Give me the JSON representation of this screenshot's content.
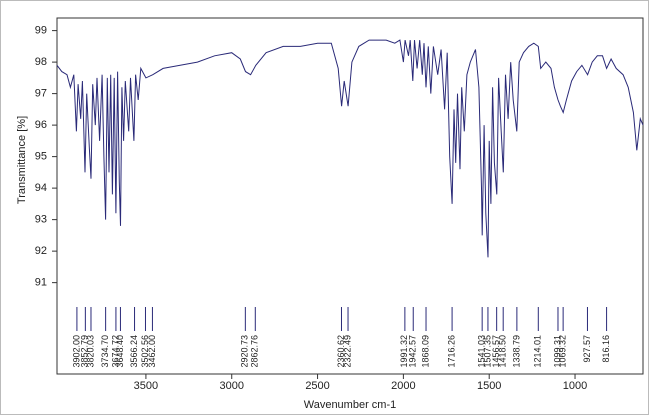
{
  "chart_data": {
    "type": "line",
    "xlabel": "Wavenumber cm-1",
    "ylabel": "Transmittance [%]",
    "xlim": [
      4018,
      604
    ],
    "ylim": [
      88.1,
      99.4
    ],
    "xticks": [
      3500,
      3000,
      2500,
      2000,
      1500,
      1000
    ],
    "yticks": [
      91,
      92,
      93,
      94,
      95,
      96,
      97,
      98,
      99
    ],
    "series": [
      {
        "color": "#2a2a78",
        "x": [
          4018,
          3990,
          3960,
          3940,
          3920,
          3905,
          3895,
          3880,
          3870,
          3855,
          3845,
          3830,
          3820,
          3810,
          3795,
          3785,
          3770,
          3755,
          3745,
          3735,
          3725,
          3715,
          3705,
          3695,
          3685,
          3675,
          3665,
          3655,
          3648,
          3640,
          3630,
          3620,
          3600,
          3590,
          3570,
          3560,
          3545,
          3530,
          3500,
          3460,
          3400,
          3300,
          3200,
          3100,
          3000,
          2950,
          2920,
          2890,
          2860,
          2800,
          2700,
          2600,
          2500,
          2420,
          2380,
          2360,
          2345,
          2322,
          2300,
          2260,
          2200,
          2100,
          2050,
          2020,
          2000,
          1990,
          1970,
          1960,
          1945,
          1935,
          1920,
          1905,
          1890,
          1880,
          1868,
          1855,
          1840,
          1825,
          1800,
          1780,
          1760,
          1745,
          1730,
          1716,
          1705,
          1695,
          1685,
          1670,
          1660,
          1645,
          1630,
          1610,
          1580,
          1560,
          1545,
          1541,
          1530,
          1520,
          1507,
          1500,
          1490,
          1480,
          1470,
          1456,
          1445,
          1430,
          1418,
          1405,
          1390,
          1375,
          1360,
          1339,
          1325,
          1300,
          1270,
          1240,
          1214,
          1200,
          1170,
          1140,
          1120,
          1099,
          1085,
          1069,
          1050,
          1020,
          990,
          960,
          927,
          900,
          870,
          840,
          816,
          790,
          760,
          720,
          690,
          660,
          640,
          620,
          604
        ],
        "values": [
          97.9,
          97.7,
          97.6,
          97.2,
          97.6,
          95.8,
          97.3,
          96.2,
          97.4,
          94.5,
          97.0,
          95.3,
          94.3,
          97.3,
          96.0,
          97.5,
          95.5,
          97.6,
          95.0,
          93.0,
          97.5,
          94.5,
          97.6,
          93.8,
          97.5,
          93.2,
          97.7,
          94.2,
          92.8,
          97.2,
          95.5,
          97.4,
          95.8,
          97.5,
          95.5,
          97.6,
          96.8,
          97.8,
          97.5,
          97.6,
          97.8,
          97.9,
          98.0,
          98.2,
          98.3,
          98.1,
          97.7,
          97.6,
          97.9,
          98.3,
          98.5,
          98.5,
          98.6,
          98.6,
          97.8,
          96.6,
          97.4,
          96.6,
          98.0,
          98.5,
          98.7,
          98.7,
          98.6,
          98.7,
          98.0,
          98.7,
          98.2,
          98.7,
          97.4,
          98.7,
          97.8,
          98.7,
          97.6,
          98.6,
          97.2,
          98.5,
          97.0,
          98.5,
          97.6,
          98.4,
          96.5,
          98.3,
          95.0,
          93.5,
          96.5,
          94.8,
          97.0,
          94.6,
          97.2,
          95.8,
          97.6,
          98.0,
          98.4,
          97.2,
          94.0,
          92.5,
          96.0,
          93.2,
          91.8,
          95.5,
          93.5,
          97.2,
          94.8,
          93.8,
          97.5,
          95.8,
          94.5,
          97.6,
          96.2,
          98.0,
          96.8,
          95.8,
          98.0,
          98.3,
          98.5,
          98.6,
          98.5,
          97.8,
          98.0,
          97.8,
          97.2,
          96.8,
          96.6,
          96.4,
          96.8,
          97.4,
          97.7,
          97.9,
          97.6,
          98.0,
          98.2,
          98.2,
          97.8,
          98.1,
          97.8,
          97.6,
          97.2,
          96.4,
          95.2,
          96.2,
          96.0
        ]
      }
    ],
    "peaks": [
      {
        "value": 3902,
        "label": "3902.00"
      },
      {
        "value": 3852.79,
        "label": "3852.79"
      },
      {
        "value": 3820.03,
        "label": "3820.03"
      },
      {
        "value": 3734.7,
        "label": "3734.70"
      },
      {
        "value": 3674.72,
        "label": "3674.72"
      },
      {
        "value": 3648.4,
        "label": "3648.40"
      },
      {
        "value": 3566.24,
        "label": "3566.24"
      },
      {
        "value": 3502.56,
        "label": "3502.56"
      },
      {
        "value": 3462,
        "label": "3462.00"
      },
      {
        "value": 2920.73,
        "label": "2920.73"
      },
      {
        "value": 2862.76,
        "label": "2862.76"
      },
      {
        "value": 2360.62,
        "label": "2360.62"
      },
      {
        "value": 2322.49,
        "label": "2322.49"
      },
      {
        "value": 1991.32,
        "label": "1991.32"
      },
      {
        "value": 1942.57,
        "label": "1942.57"
      },
      {
        "value": 1868.09,
        "label": "1868.09"
      },
      {
        "value": 1716.26,
        "label": "1716.26"
      },
      {
        "value": 1541.03,
        "label": "1541.03"
      },
      {
        "value": 1507.35,
        "label": "1507.35"
      },
      {
        "value": 1456.57,
        "label": "1456.57"
      },
      {
        "value": 1418.5,
        "label": "1418.50"
      },
      {
        "value": 1338.79,
        "label": "1338.79"
      },
      {
        "value": 1214.01,
        "label": "1214.01"
      },
      {
        "value": 1099.31,
        "label": "1099.31"
      },
      {
        "value": 1069.32,
        "label": "1069.32"
      },
      {
        "value": 927.57,
        "label": "927.57"
      },
      {
        "value": 816.16,
        "label": "816.16"
      }
    ]
  }
}
